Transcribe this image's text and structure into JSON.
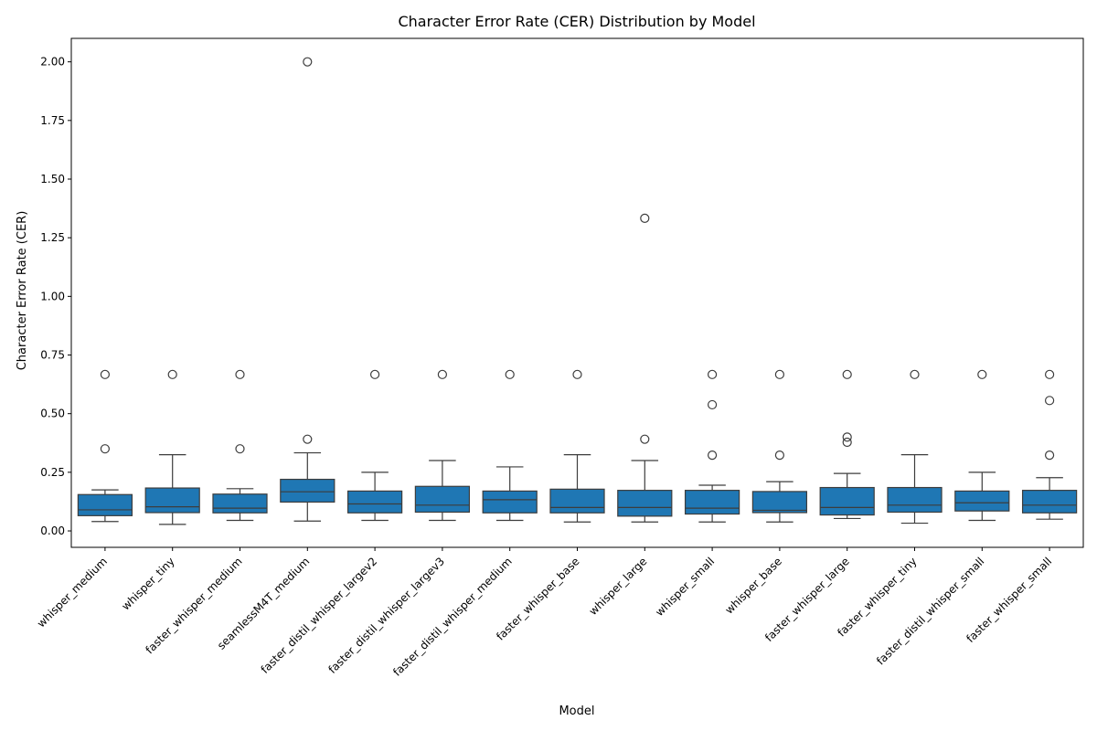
{
  "chart_data": {
    "type": "box",
    "title": "Character Error Rate (CER) Distribution by Model",
    "xlabel": "Model",
    "ylabel": "Character Error Rate (CER)",
    "ylim": [
      -0.07,
      2.1
    ],
    "yticks": [
      "0.00",
      "0.25",
      "0.50",
      "0.75",
      "1.00",
      "1.25",
      "1.50",
      "1.75",
      "2.00"
    ],
    "box_color": "#1f77b4",
    "grid": false,
    "categories": [
      "whisper_medium",
      "whisper_tiny",
      "faster_whisper_medium",
      "seamlessM4T_medium",
      "faster_distil_whisper_largev2",
      "faster_distil_whisper_largev3",
      "faster_distil_whisper_medium",
      "faster_whisper_base",
      "whisper_large",
      "whisper_small",
      "whisper_base",
      "faster_whisper_large",
      "faster_whisper_tiny",
      "faster_distil_whisper_small",
      "faster_whisper_small"
    ],
    "boxes": [
      {
        "whislo": 0.04,
        "q1": 0.065,
        "med": 0.09,
        "q3": 0.155,
        "whishi": 0.175,
        "fliers": [
          0.35,
          0.667
        ]
      },
      {
        "whislo": 0.028,
        "q1": 0.078,
        "med": 0.103,
        "q3": 0.183,
        "whishi": 0.325,
        "fliers": [
          0.667
        ]
      },
      {
        "whislo": 0.045,
        "q1": 0.077,
        "med": 0.097,
        "q3": 0.157,
        "whishi": 0.18,
        "fliers": [
          0.35,
          0.667
        ]
      },
      {
        "whislo": 0.042,
        "q1": 0.123,
        "med": 0.167,
        "q3": 0.22,
        "whishi": 0.333,
        "fliers": [
          0.391,
          2.0
        ]
      },
      {
        "whislo": 0.045,
        "q1": 0.077,
        "med": 0.115,
        "q3": 0.17,
        "whishi": 0.25,
        "fliers": [
          0.667
        ]
      },
      {
        "whislo": 0.045,
        "q1": 0.08,
        "med": 0.11,
        "q3": 0.19,
        "whishi": 0.3,
        "fliers": [
          0.667
        ]
      },
      {
        "whislo": 0.045,
        "q1": 0.077,
        "med": 0.133,
        "q3": 0.17,
        "whishi": 0.273,
        "fliers": [
          0.667
        ]
      },
      {
        "whislo": 0.038,
        "q1": 0.077,
        "med": 0.1,
        "q3": 0.178,
        "whishi": 0.325,
        "fliers": [
          0.667
        ]
      },
      {
        "whislo": 0.038,
        "q1": 0.063,
        "med": 0.1,
        "q3": 0.173,
        "whishi": 0.3,
        "fliers": [
          0.391,
          1.333
        ]
      },
      {
        "whislo": 0.038,
        "q1": 0.072,
        "med": 0.097,
        "q3": 0.173,
        "whishi": 0.195,
        "fliers": [
          0.323,
          0.538,
          0.667
        ]
      },
      {
        "whislo": 0.038,
        "q1": 0.078,
        "med": 0.088,
        "q3": 0.168,
        "whishi": 0.21,
        "fliers": [
          0.323,
          0.667
        ]
      },
      {
        "whislo": 0.053,
        "q1": 0.068,
        "med": 0.1,
        "q3": 0.185,
        "whishi": 0.245,
        "fliers": [
          0.378,
          0.4,
          0.667
        ]
      },
      {
        "whislo": 0.033,
        "q1": 0.08,
        "med": 0.11,
        "q3": 0.185,
        "whishi": 0.325,
        "fliers": [
          0.667
        ]
      },
      {
        "whislo": 0.045,
        "q1": 0.085,
        "med": 0.12,
        "q3": 0.17,
        "whishi": 0.25,
        "fliers": [
          0.667
        ]
      },
      {
        "whislo": 0.05,
        "q1": 0.077,
        "med": 0.11,
        "q3": 0.173,
        "whishi": 0.227,
        "fliers": [
          0.323,
          0.556,
          0.667
        ]
      }
    ]
  }
}
